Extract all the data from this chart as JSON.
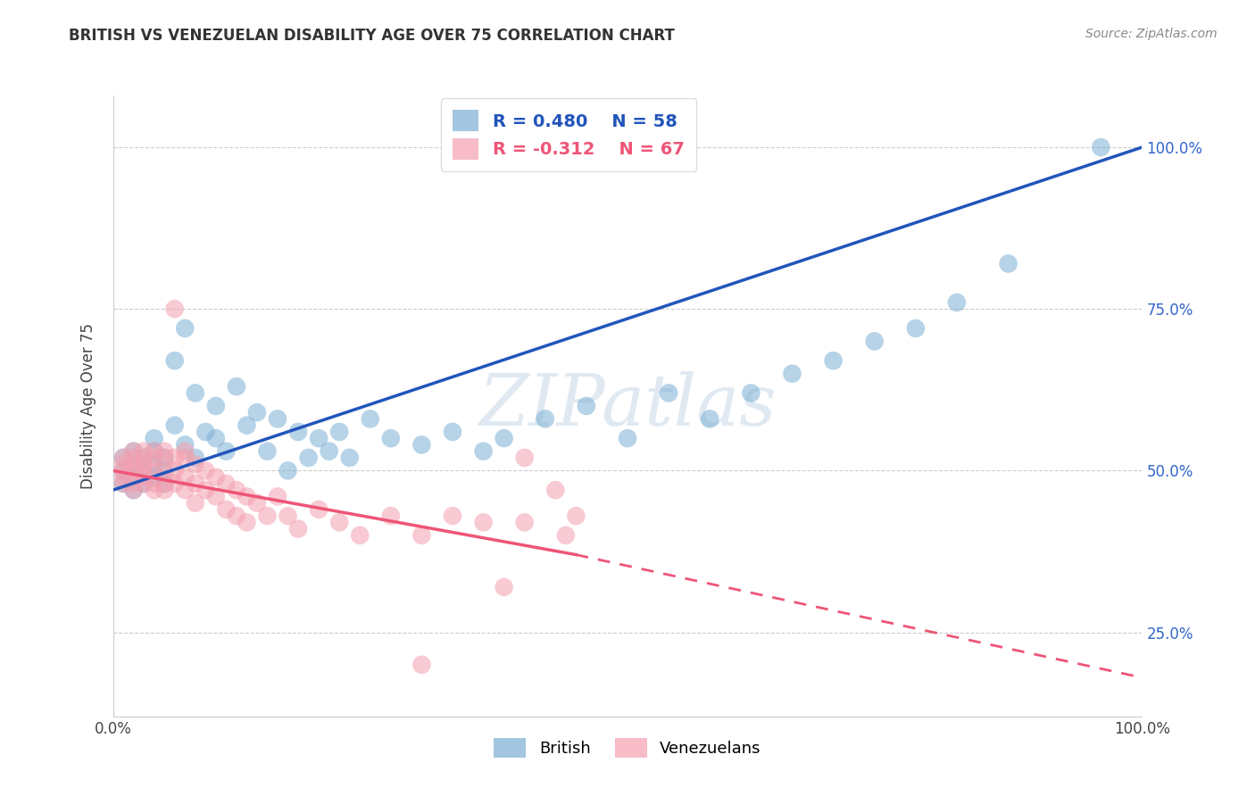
{
  "title": "BRITISH VS VENEZUELAN DISABILITY AGE OVER 75 CORRELATION CHART",
  "source": "Source: ZipAtlas.com",
  "ylabel": "Disability Age Over 75",
  "xlim": [
    0.0,
    1.0
  ],
  "ylim": [
    0.12,
    1.08
  ],
  "y_ticks_right": [
    0.25,
    0.5,
    0.75,
    1.0
  ],
  "y_tick_labels_right": [
    "25.0%",
    "50.0%",
    "75.0%",
    "100.0%"
  ],
  "british_R": 0.48,
  "british_N": 58,
  "venezuelan_R": -0.312,
  "venezuelan_N": 67,
  "british_color": "#7BAFD4",
  "venezuelan_color": "#F4A0B0",
  "british_line_color": "#2255BB",
  "venezuelan_line_color": "#EE5577",
  "watermark_text": "ZIPatlas",
  "legend_british_label": "British",
  "legend_venezuelan_label": "Venezuelans",
  "brit_line_x0": 0.0,
  "brit_line_y0": 0.47,
  "brit_line_x1": 1.0,
  "brit_line_y1": 1.0,
  "ven_line_x0": 0.0,
  "ven_line_y0": 0.5,
  "ven_line_x1solid": 0.45,
  "ven_line_y1solid": 0.37,
  "ven_line_x1dash": 1.0,
  "ven_line_y1dash": 0.18,
  "british_x": [
    0.01,
    0.01,
    0.01,
    0.02,
    0.02,
    0.02,
    0.02,
    0.03,
    0.03,
    0.03,
    0.04,
    0.04,
    0.04,
    0.04,
    0.05,
    0.05,
    0.05,
    0.06,
    0.06,
    0.07,
    0.07,
    0.08,
    0.08,
    0.09,
    0.1,
    0.1,
    0.11,
    0.12,
    0.13,
    0.14,
    0.15,
    0.16,
    0.17,
    0.18,
    0.19,
    0.2,
    0.21,
    0.22,
    0.23,
    0.25,
    0.27,
    0.3,
    0.33,
    0.36,
    0.38,
    0.42,
    0.46,
    0.5,
    0.54,
    0.58,
    0.62,
    0.66,
    0.7,
    0.74,
    0.78,
    0.82,
    0.87,
    0.96
  ],
  "british_y": [
    0.5,
    0.52,
    0.48,
    0.51,
    0.49,
    0.53,
    0.47,
    0.5,
    0.52,
    0.48,
    0.51,
    0.53,
    0.49,
    0.55,
    0.5,
    0.52,
    0.48,
    0.57,
    0.67,
    0.54,
    0.72,
    0.52,
    0.62,
    0.56,
    0.6,
    0.55,
    0.53,
    0.63,
    0.57,
    0.59,
    0.53,
    0.58,
    0.5,
    0.56,
    0.52,
    0.55,
    0.53,
    0.56,
    0.52,
    0.58,
    0.55,
    0.54,
    0.56,
    0.53,
    0.55,
    0.58,
    0.6,
    0.55,
    0.62,
    0.58,
    0.62,
    0.65,
    0.67,
    0.7,
    0.72,
    0.76,
    0.82,
    1.0
  ],
  "venezuelan_x": [
    0.01,
    0.01,
    0.01,
    0.01,
    0.01,
    0.02,
    0.02,
    0.02,
    0.02,
    0.02,
    0.02,
    0.03,
    0.03,
    0.03,
    0.03,
    0.03,
    0.03,
    0.04,
    0.04,
    0.04,
    0.04,
    0.04,
    0.05,
    0.05,
    0.05,
    0.05,
    0.05,
    0.06,
    0.06,
    0.06,
    0.06,
    0.07,
    0.07,
    0.07,
    0.07,
    0.08,
    0.08,
    0.08,
    0.09,
    0.09,
    0.1,
    0.1,
    0.11,
    0.11,
    0.12,
    0.12,
    0.13,
    0.13,
    0.14,
    0.15,
    0.16,
    0.17,
    0.18,
    0.2,
    0.22,
    0.24,
    0.27,
    0.3,
    0.33,
    0.36,
    0.4,
    0.44,
    0.3,
    0.38,
    0.4,
    0.43,
    0.45
  ],
  "venezuelan_y": [
    0.51,
    0.49,
    0.52,
    0.48,
    0.5,
    0.52,
    0.5,
    0.48,
    0.53,
    0.51,
    0.47,
    0.52,
    0.5,
    0.48,
    0.53,
    0.49,
    0.51,
    0.52,
    0.5,
    0.48,
    0.53,
    0.47,
    0.52,
    0.5,
    0.48,
    0.53,
    0.47,
    0.75,
    0.52,
    0.5,
    0.48,
    0.52,
    0.49,
    0.47,
    0.53,
    0.51,
    0.48,
    0.45,
    0.5,
    0.47,
    0.49,
    0.46,
    0.48,
    0.44,
    0.47,
    0.43,
    0.46,
    0.42,
    0.45,
    0.43,
    0.46,
    0.43,
    0.41,
    0.44,
    0.42,
    0.4,
    0.43,
    0.4,
    0.43,
    0.42,
    0.42,
    0.4,
    0.2,
    0.32,
    0.52,
    0.47,
    0.43
  ]
}
